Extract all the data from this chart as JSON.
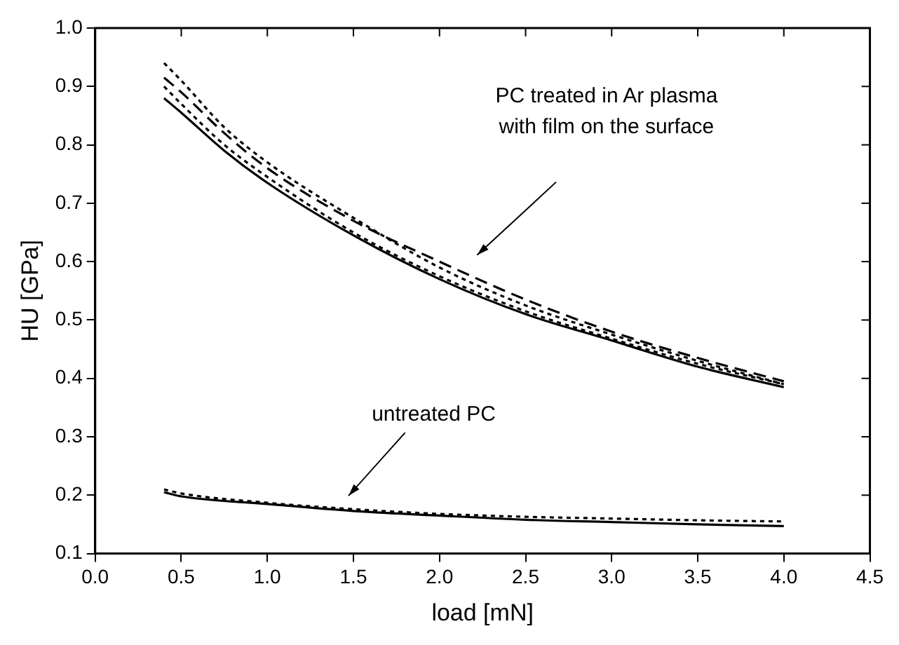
{
  "chart_data": {
    "type": "line",
    "xlabel": "load [mN]",
    "ylabel": "HU [GPa]",
    "xlim": [
      0,
      4.5
    ],
    "ylim": [
      0.1,
      1.0
    ],
    "xticks": [
      {
        "value": 0,
        "label": "0.0"
      },
      0.5,
      {
        "value": 1,
        "label": "1.0"
      },
      1.5,
      {
        "value": 2,
        "label": "2.0"
      },
      2.5,
      {
        "value": 3,
        "label": "3.0"
      },
      3.5,
      {
        "value": 4,
        "label": "4.0"
      },
      4.5
    ],
    "yticks": [
      0.1,
      0.2,
      0.3,
      0.4,
      0.5,
      0.6,
      0.7,
      0.8,
      0.9,
      {
        "value": 1,
        "label": "1.0"
      }
    ],
    "grid": false,
    "legend": false,
    "marker": "none",
    "x": [
      0.4,
      0.5,
      0.75,
      1.0,
      1.5,
      2.0,
      2.5,
      3.0,
      3.5,
      4.0
    ],
    "series": [
      {
        "color": "#000000",
        "line_style": "solid",
        "values": [
          0.88,
          0.855,
          0.79,
          0.735,
          0.645,
          0.57,
          0.51,
          0.465,
          0.42,
          0.385
        ]
      },
      {
        "color": "#000000",
        "line_style": "dotted",
        "values": [
          0.9,
          0.87,
          0.8,
          0.745,
          0.65,
          0.575,
          0.515,
          0.468,
          0.425,
          0.39
        ]
      },
      {
        "color": "#000000",
        "line_style": "dashed",
        "values": [
          0.915,
          0.89,
          0.82,
          0.76,
          0.67,
          0.6,
          0.535,
          0.48,
          0.435,
          0.395
        ]
      },
      {
        "color": "#000000",
        "line_style": "dotted",
        "values": [
          0.94,
          0.91,
          0.83,
          0.77,
          0.675,
          0.59,
          0.525,
          0.475,
          0.43,
          0.39
        ]
      },
      {
        "color": "#000000",
        "line_style": "solid",
        "x": [
          0.4,
          0.5,
          1.0,
          1.5,
          2.0,
          2.5,
          3.0,
          3.5,
          4.0
        ],
        "values": [
          0.205,
          0.198,
          0.185,
          0.173,
          0.165,
          0.158,
          0.154,
          0.15,
          0.147
        ]
      },
      {
        "color": "#000000",
        "line_style": "dotted",
        "x": [
          0.4,
          0.5,
          1.0,
          1.5,
          2.0,
          2.5,
          3.0,
          3.5,
          4.0
        ],
        "values": [
          0.21,
          0.203,
          0.187,
          0.176,
          0.168,
          0.163,
          0.16,
          0.157,
          0.155
        ]
      }
    ],
    "annotations": [
      "PC treated in Ar plasma\nwith film on the surface",
      "untreated PC"
    ]
  }
}
